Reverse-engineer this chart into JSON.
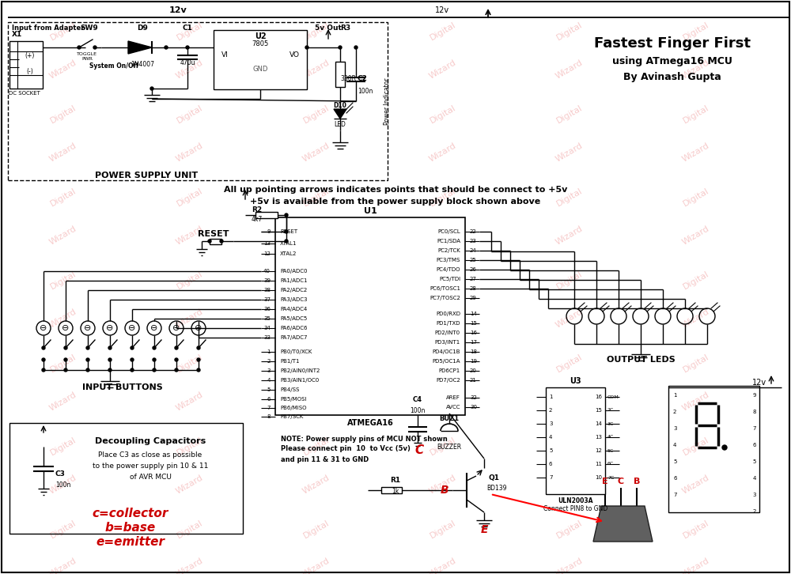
{
  "title": "Fastest Finger First",
  "subtitle1": "using ATmega16 MCU",
  "subtitle2": "By Avinash Gupta",
  "bg_color": "#ffffff",
  "line_color": "#000000",
  "red_color": "#cc0000",
  "pink_watermark": "#f0a0a0",
  "fig_width": 10.0,
  "fig_height": 7.26,
  "dpi": 100,
  "note_text1": "NOTE: Power supply pins of MCU NOT shown",
  "note_text2": "Please connect pin  10  to Vcc (5v)",
  "note_text3": "and pin 11 & 31 to GND",
  "info_text1": "All up pointing arrows indicates points that should be connect to +5v",
  "info_text2": "+5v is available from the power supply block shown above",
  "psu_label": "POWER SUPPLY UNIT",
  "input_btn_label": "INPUT BUTTONS",
  "output_led_label": "OUTPUT LEDS",
  "atmega_label": "ATMEGA16",
  "uln_label": "ULN2003A",
  "uln_note": "Connect PIN8 to GND",
  "decoupling_title": "Decoupling Capacitors",
  "decoupling_line1": "Place C3 as close as possible",
  "decoupling_line2": "to the power supply pin 10 & 11",
  "decoupling_line3": "of AVR MCU",
  "label_c": "c=collector",
  "label_b": "b=base",
  "label_e": "e=emitter"
}
